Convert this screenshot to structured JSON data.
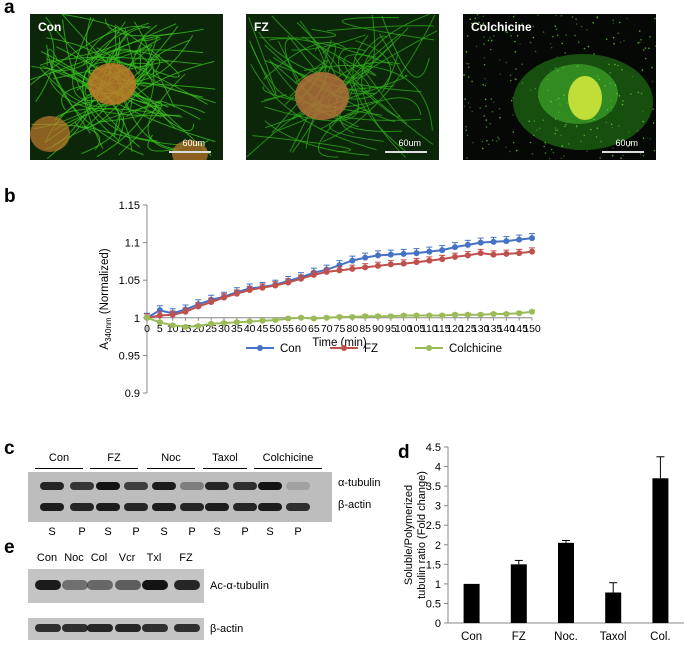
{
  "panels": {
    "a": "a",
    "b": "b",
    "c": "c",
    "d": "d",
    "e": "e"
  },
  "micrographs": [
    {
      "label": "Con",
      "scale": "60um",
      "style": "dense-green",
      "nucleus_color": "#c07a2a"
    },
    {
      "label": "FZ",
      "scale": "60um",
      "style": "wavy-green",
      "nucleus_color": "#b2703a"
    },
    {
      "label": "Colchicine",
      "scale": "60um",
      "style": "diffuse-green",
      "nucleus_color": "#c8e23a"
    }
  ],
  "chart_data": [
    {
      "type": "line",
      "panel": "b",
      "xlabel": "Time (min)",
      "ylabel": "A340nm (Normalized)",
      "ylabel_main": "A",
      "ylabel_sub": "340nm",
      "ylabel_rest": " (Normalized)",
      "xlim": [
        0,
        150
      ],
      "ylim": [
        0.9,
        1.15
      ],
      "xticks": [
        "0",
        "5",
        "10",
        "15",
        "20",
        "25",
        "30",
        "35",
        "40",
        "45",
        "50",
        "55",
        "60",
        "65",
        "70",
        "75",
        "80",
        "85",
        "90",
        "95",
        "100",
        "105",
        "110",
        "115",
        "120",
        "125",
        "130",
        "135",
        "140",
        "145",
        "150"
      ],
      "yticks": [
        "0.9",
        "0.95",
        "1",
        "1.05",
        "1.1",
        "1.15"
      ],
      "legend_position": "bottom-center",
      "x": [
        0,
        5,
        10,
        15,
        20,
        25,
        30,
        35,
        40,
        45,
        50,
        55,
        60,
        65,
        70,
        75,
        80,
        85,
        90,
        95,
        100,
        105,
        110,
        115,
        120,
        125,
        130,
        135,
        140,
        145,
        150
      ],
      "series": [
        {
          "name": "Con",
          "color": "#4472c4",
          "values": [
            1.0,
            1.01,
            1.006,
            1.011,
            1.018,
            1.024,
            1.028,
            1.034,
            1.039,
            1.041,
            1.044,
            1.049,
            1.054,
            1.06,
            1.064,
            1.07,
            1.076,
            1.08,
            1.083,
            1.084,
            1.085,
            1.086,
            1.088,
            1.09,
            1.094,
            1.097,
            1.1,
            1.101,
            1.102,
            1.104,
            1.106
          ],
          "error": 0.006
        },
        {
          "name": "FZ",
          "color": "#c0504d",
          "values": [
            1.0,
            1.003,
            1.004,
            1.008,
            1.015,
            1.021,
            1.027,
            1.032,
            1.037,
            1.04,
            1.043,
            1.047,
            1.052,
            1.057,
            1.061,
            1.063,
            1.065,
            1.067,
            1.069,
            1.071,
            1.072,
            1.074,
            1.076,
            1.078,
            1.081,
            1.083,
            1.086,
            1.084,
            1.085,
            1.086,
            1.088
          ],
          "error": 0.005
        },
        {
          "name": "Colchicine",
          "color": "#9bbb59",
          "values": [
            1.0,
            0.994,
            0.99,
            0.988,
            0.989,
            0.992,
            0.993,
            0.994,
            0.995,
            0.996,
            0.997,
            0.999,
            1.0,
            0.999,
            1.0,
            1.001,
            1.001,
            1.002,
            1.002,
            1.002,
            1.003,
            1.003,
            1.003,
            1.003,
            1.004,
            1.004,
            1.004,
            1.005,
            1.005,
            1.006,
            1.008
          ],
          "error": 0.002
        }
      ]
    },
    {
      "type": "bar",
      "panel": "d",
      "ylabel_line1": "Soluble/Polymerized",
      "ylabel_line2": "tubulin ratio (Fold change)",
      "categories": [
        "Con",
        "FZ",
        "Noc.",
        "Taxol",
        "Col."
      ],
      "values": [
        1.0,
        1.5,
        2.05,
        0.78,
        3.7
      ],
      "errors": [
        0.0,
        0.1,
        0.06,
        0.25,
        0.55
      ],
      "ylim": [
        0,
        4.5
      ],
      "yticks": [
        "0",
        "0.5",
        "1",
        "1.5",
        "2",
        "2.5",
        "3",
        "3.5",
        "4",
        "4.5"
      ],
      "bar_color": "#000000"
    }
  ],
  "blot_c": {
    "groups": [
      "Con",
      "FZ",
      "Noc",
      "Taxol",
      "Colchicine"
    ],
    "lanes": [
      "S",
      "P",
      "S",
      "P",
      "S",
      "P",
      "S",
      "P",
      "S",
      "P"
    ],
    "bands": [
      "α-tubulin",
      "β-actin"
    ],
    "tubulin_intensity": [
      0.85,
      0.75,
      0.95,
      0.7,
      0.9,
      0.35,
      0.85,
      0.8,
      0.95,
      0.15
    ],
    "actin_intensity": [
      0.9,
      0.85,
      0.9,
      0.85,
      0.9,
      0.85,
      0.9,
      0.85,
      0.9,
      0.8
    ]
  },
  "blot_e": {
    "lanes": [
      "Con",
      "Noc",
      "Col",
      "Vcr",
      "Txl",
      "FZ"
    ],
    "bands": [
      "Ac-α-tubulin",
      "β-actin"
    ],
    "ac_intensity": [
      0.9,
      0.45,
      0.5,
      0.55,
      0.95,
      0.85
    ],
    "actin_intensity": [
      0.8,
      0.8,
      0.85,
      0.85,
      0.8,
      0.8
    ]
  }
}
